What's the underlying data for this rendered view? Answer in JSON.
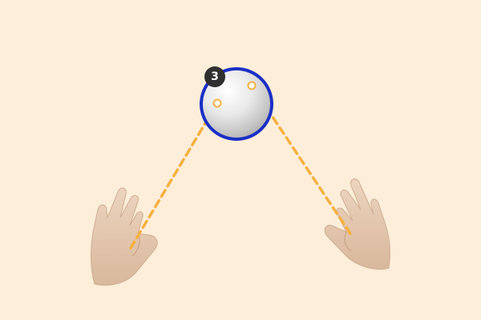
{
  "scene": {
    "background_color": "#fdeed9",
    "ray_color": "#f5b041",
    "orb_outline_color": "#1a2fc4",
    "hand_color": "#e3c5ab",
    "badge_color": "#2f2f2f"
  },
  "orb": {
    "badge_count": "3"
  },
  "hands": {
    "left_icon": "left-hand-icon",
    "right_icon": "right-hand-icon"
  }
}
